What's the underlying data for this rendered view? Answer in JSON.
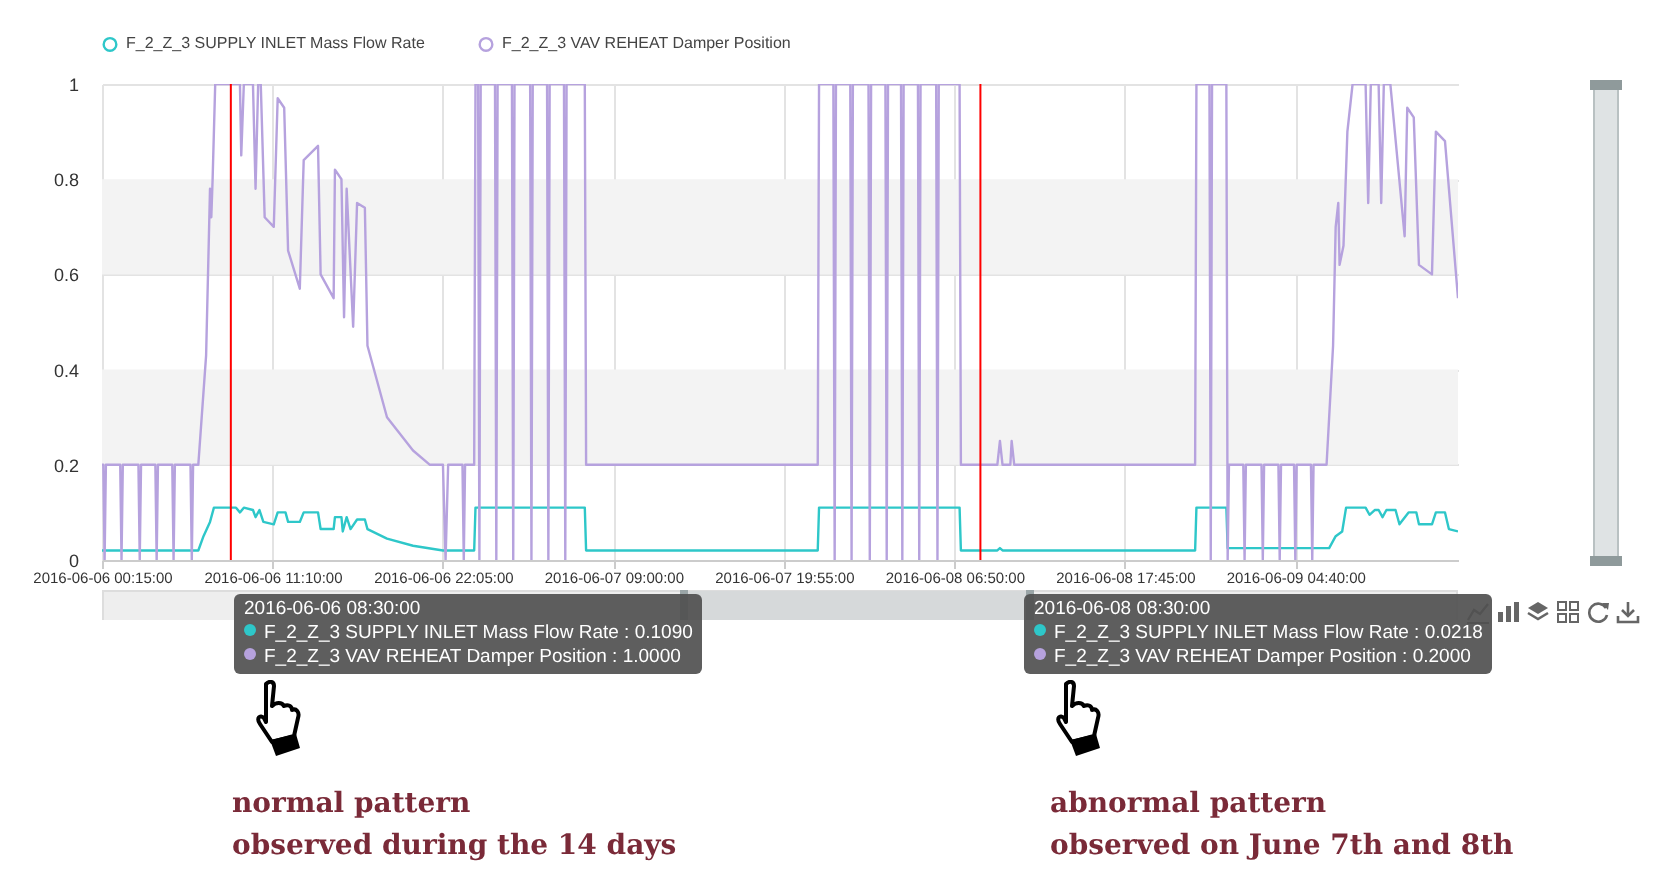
{
  "chart_data": {
    "type": "line",
    "xlim": [
      "2016-06-06T00:15",
      "2016-06-09T15:05"
    ],
    "xticks": [
      {
        "value": "2016-06-06T00:15",
        "label": "2016-06-06 00:15:00"
      },
      {
        "value": "2016-06-06T11:10",
        "label": "2016-06-06 11:10:00"
      },
      {
        "value": "2016-06-06T22:05",
        "label": "2016-06-06 22:05:00"
      },
      {
        "value": "2016-06-07T09:00",
        "label": "2016-06-07 09:00:00"
      },
      {
        "value": "2016-06-07T19:55",
        "label": "2016-06-07 19:55:00"
      },
      {
        "value": "2016-06-08T06:50",
        "label": "2016-06-08 06:50:00"
      },
      {
        "value": "2016-06-08T17:45",
        "label": "2016-06-08 17:45:00"
      },
      {
        "value": "2016-06-09T04:40",
        "label": "2016-06-09 04:40:00"
      }
    ],
    "ylim": [
      0,
      1
    ],
    "yticks": [
      0,
      0.2,
      0.4,
      0.6,
      0.8,
      1
    ],
    "grid": true,
    "legend": "top",
    "marker": "none",
    "line_style": "solid",
    "bands": [
      {
        "axis": "y",
        "from": 0.2,
        "to": 0.4,
        "color": "#f3f3f3"
      },
      {
        "axis": "y",
        "from": 0.6,
        "to": 0.8,
        "color": "#f3f3f3"
      }
    ],
    "ref_lines": [
      {
        "axis": "x",
        "value": "2016-06-06T08:30",
        "color": "#ff0000"
      },
      {
        "axis": "x",
        "value": "2016-06-08T08:30",
        "color": "#ff0000"
      }
    ],
    "annotations": [
      "2016-06-06 08:30:00",
      "F_2_Z_3 SUPPLY INLET Mass Flow Rate : 0.1090",
      "F_2_Z_3 VAV REHEAT Damper Position : 1.0000",
      "2016-06-08 08:30:00",
      "F_2_Z_3 SUPPLY INLET Mass Flow Rate : 0.0218",
      "F_2_Z_3 VAV REHEAT Damper Position : 0.2000",
      "normal pattern",
      "observed during the 14 days",
      "abnormal pattern",
      "observed on June 7th and 8th"
    ],
    "series": [
      {
        "name": "F_2_Z_3 SUPPLY INLET Mass Flow Rate",
        "color": "#2ec7c9",
        "x": [
          "2016-06-06T00:15",
          "2016-06-06T06:25",
          "2016-06-06T06:45",
          "2016-06-06T07:10",
          "2016-06-06T07:25",
          "2016-06-06T08:50",
          "2016-06-06T09:05",
          "2016-06-06T09:20",
          "2016-06-06T09:55",
          "2016-06-06T10:05",
          "2016-06-06T10:20",
          "2016-06-06T10:35",
          "2016-06-06T11:15",
          "2016-06-06T11:30",
          "2016-06-06T12:00",
          "2016-06-06T12:10",
          "2016-06-06T12:55",
          "2016-06-06T13:10",
          "2016-06-06T14:05",
          "2016-06-06T14:15",
          "2016-06-06T15:05",
          "2016-06-06T15:10",
          "2016-06-06T15:35",
          "2016-06-06T15:40",
          "2016-06-06T15:55",
          "2016-06-06T16:10",
          "2016-06-06T16:35",
          "2016-06-06T17:05",
          "2016-06-06T17:15",
          "2016-06-06T18:30",
          "2016-06-06T20:10",
          "2016-06-06T22:05",
          "2016-06-07T00:05",
          "2016-06-07T00:10",
          "2016-06-07T07:10",
          "2016-06-07T07:15",
          "2016-06-07T22:05",
          "2016-06-07T22:10",
          "2016-06-08T07:10",
          "2016-06-08T07:15",
          "2016-06-08T09:35",
          "2016-06-08T09:45",
          "2016-06-08T09:55",
          "2016-06-08T22:15",
          "2016-06-08T22:20",
          "2016-06-09T00:15",
          "2016-06-09T00:20",
          "2016-06-09T06:50",
          "2016-06-09T07:15",
          "2016-06-09T07:40",
          "2016-06-09T07:55",
          "2016-06-09T09:10",
          "2016-06-09T09:25",
          "2016-06-09T09:45",
          "2016-06-09T10:00",
          "2016-06-09T10:15",
          "2016-06-09T10:30",
          "2016-06-09T11:05",
          "2016-06-09T11:20",
          "2016-06-09T11:55",
          "2016-06-09T12:25",
          "2016-06-09T12:35",
          "2016-06-09T13:25",
          "2016-06-09T13:40",
          "2016-06-09T14:15",
          "2016-06-09T14:30",
          "2016-06-09T15:05"
        ],
        "values": [
          0.02,
          0.02,
          0.05,
          0.08,
          0.11,
          0.11,
          0.1,
          0.11,
          0.105,
          0.09,
          0.105,
          0.08,
          0.075,
          0.1,
          0.1,
          0.08,
          0.08,
          0.1,
          0.1,
          0.065,
          0.065,
          0.09,
          0.09,
          0.06,
          0.09,
          0.065,
          0.085,
          0.085,
          0.065,
          0.045,
          0.03,
          0.02,
          0.02,
          0.11,
          0.11,
          0.02,
          0.02,
          0.11,
          0.11,
          0.02,
          0.02,
          0.025,
          0.02,
          0.02,
          0.11,
          0.11,
          0.025,
          0.025,
          0.05,
          0.06,
          0.11,
          0.11,
          0.095,
          0.105,
          0.105,
          0.09,
          0.105,
          0.105,
          0.075,
          0.1,
          0.1,
          0.075,
          0.075,
          0.1,
          0.1,
          0.065,
          0.06
        ]
      },
      {
        "name": "F_2_Z_3 VAV REHEAT Damper Position",
        "color": "#b6a2de",
        "x": [
          "2016-06-06T00:15",
          "2016-06-06T00:20",
          "2016-06-06T00:25",
          "2016-06-06T00:30",
          "2016-06-06T01:25",
          "2016-06-06T01:30",
          "2016-06-06T01:35",
          "2016-06-06T02:35",
          "2016-06-06T02:40",
          "2016-06-06T02:45",
          "2016-06-06T03:40",
          "2016-06-06T03:45",
          "2016-06-06T03:50",
          "2016-06-06T04:45",
          "2016-06-06T04:50",
          "2016-06-06T04:55",
          "2016-06-06T05:55",
          "2016-06-06T06:00",
          "2016-06-06T06:05",
          "2016-06-06T06:25",
          "2016-06-06T06:55",
          "2016-06-06T07:10",
          "2016-06-06T07:15",
          "2016-06-06T07:20",
          "2016-06-06T07:30",
          "2016-06-06T09:05",
          "2016-06-06T09:10",
          "2016-06-06T09:20",
          "2016-06-06T09:55",
          "2016-06-06T10:05",
          "2016-06-06T10:15",
          "2016-06-06T10:25",
          "2016-06-06T10:40",
          "2016-06-06T11:15",
          "2016-06-06T11:30",
          "2016-06-06T11:55",
          "2016-06-06T12:10",
          "2016-06-06T12:55",
          "2016-06-06T13:10",
          "2016-06-06T14:05",
          "2016-06-06T14:15",
          "2016-06-06T15:05",
          "2016-06-06T15:10",
          "2016-06-06T15:35",
          "2016-06-06T15:45",
          "2016-06-06T15:55",
          "2016-06-06T16:20",
          "2016-06-06T16:35",
          "2016-06-06T17:05",
          "2016-06-06T17:15",
          "2016-06-06T18:30",
          "2016-06-06T20:10",
          "2016-06-06T21:15",
          "2016-06-06T22:05",
          "2016-06-06T22:15",
          "2016-06-06T22:25",
          "2016-06-06T23:20",
          "2016-06-06T23:25",
          "2016-06-06T23:30",
          "2016-06-07T00:05",
          "2016-06-07T00:10",
          "2016-06-07T00:20",
          "2016-06-07T00:25",
          "2016-06-07T00:30",
          "2016-06-07T01:25",
          "2016-06-07T01:30",
          "2016-06-07T01:35",
          "2016-06-07T02:30",
          "2016-06-07T02:35",
          "2016-06-07T02:40",
          "2016-06-07T03:40",
          "2016-06-07T03:45",
          "2016-06-07T03:50",
          "2016-06-07T04:45",
          "2016-06-07T04:50",
          "2016-06-07T04:55",
          "2016-06-07T05:50",
          "2016-06-07T05:55",
          "2016-06-07T06:00",
          "2016-06-07T07:10",
          "2016-06-07T07:15",
          "2016-06-07T22:05",
          "2016-06-07T22:10",
          "2016-06-07T23:05",
          "2016-06-07T23:10",
          "2016-06-07T23:15",
          "2016-06-08T00:10",
          "2016-06-08T00:15",
          "2016-06-08T00:20",
          "2016-06-08T01:20",
          "2016-06-08T01:25",
          "2016-06-08T01:30",
          "2016-06-08T02:25",
          "2016-06-08T02:30",
          "2016-06-08T02:35",
          "2016-06-08T03:25",
          "2016-06-08T03:30",
          "2016-06-08T03:35",
          "2016-06-08T04:30",
          "2016-06-08T04:35",
          "2016-06-08T04:40",
          "2016-06-08T05:40",
          "2016-06-08T05:45",
          "2016-06-08T05:50",
          "2016-06-08T07:10",
          "2016-06-08T07:15",
          "2016-06-08T09:35",
          "2016-06-08T09:45",
          "2016-06-08T09:55",
          "2016-06-08T10:25",
          "2016-06-08T10:30",
          "2016-06-08T10:40",
          "2016-06-08T22:15",
          "2016-06-08T22:20",
          "2016-06-08T23:10",
          "2016-06-08T23:15",
          "2016-06-08T23:20",
          "2016-06-09T00:15",
          "2016-06-09T00:20",
          "2016-06-09T00:25",
          "2016-06-09T01:20",
          "2016-06-09T01:25",
          "2016-06-09T01:30",
          "2016-06-09T02:30",
          "2016-06-09T02:35",
          "2016-06-09T02:40",
          "2016-06-09T03:35",
          "2016-06-09T03:40",
          "2016-06-09T03:45",
          "2016-06-09T04:35",
          "2016-06-09T04:40",
          "2016-06-09T04:45",
          "2016-06-09T05:40",
          "2016-06-09T05:45",
          "2016-06-09T05:50",
          "2016-06-09T06:40",
          "2016-06-09T07:05",
          "2016-06-09T07:15",
          "2016-06-09T07:25",
          "2016-06-09T07:30",
          "2016-06-09T07:45",
          "2016-06-09T08:00",
          "2016-06-09T08:20",
          "2016-06-09T09:10",
          "2016-06-09T09:20",
          "2016-06-09T09:30",
          "2016-06-09T10:00",
          "2016-06-09T10:10",
          "2016-06-09T10:20",
          "2016-06-09T10:45",
          "2016-06-09T11:40",
          "2016-06-09T11:50",
          "2016-06-09T12:15",
          "2016-06-09T12:35",
          "2016-06-09T13:25",
          "2016-06-09T13:40",
          "2016-06-09T14:15",
          "2016-06-09T15:05"
        ],
        "values": [
          0.2,
          0.2,
          0,
          0.2,
          0.2,
          0,
          0.2,
          0.2,
          0,
          0.2,
          0.2,
          0,
          0.2,
          0.2,
          0,
          0.2,
          0.2,
          0,
          0.2,
          0.2,
          0.43,
          0.78,
          0.72,
          0.8,
          1,
          1,
          0.85,
          1,
          1,
          0.78,
          1,
          1,
          0.72,
          0.7,
          0.97,
          0.95,
          0.65,
          0.57,
          0.84,
          0.87,
          0.6,
          0.55,
          0.82,
          0.8,
          0.51,
          0.78,
          0.49,
          0.75,
          0.74,
          0.45,
          0.3,
          0.23,
          0.2,
          0.2,
          0,
          0.2,
          0.2,
          0,
          0.2,
          0.2,
          1,
          1,
          0,
          1,
          1,
          0,
          1,
          1,
          0,
          1,
          1,
          0,
          1,
          1,
          0,
          1,
          1,
          0,
          1,
          1,
          0.2,
          0.2,
          1,
          1,
          0,
          1,
          1,
          0,
          1,
          1,
          0,
          1,
          1,
          0,
          1,
          1,
          0,
          1,
          1,
          0,
          1,
          1,
          0,
          1,
          1,
          0.2,
          0.2,
          0.25,
          0.2,
          0.2,
          0.25,
          0.2,
          0.2,
          1,
          1,
          0,
          1,
          1,
          0,
          0.2,
          0.2,
          0,
          0.2,
          0.2,
          0,
          0.2,
          0.2,
          0,
          0.2,
          0.2,
          0,
          0.2,
          0.2,
          0,
          0.2,
          0.2,
          0.45,
          0.7,
          0.75,
          0.62,
          0.66,
          0.9,
          1,
          1,
          0.75,
          1,
          1,
          0.75,
          1,
          1,
          0.68,
          0.95,
          0.93,
          0.62,
          0.6,
          0.9,
          0.88,
          0.55
        ]
      }
    ]
  }
}
